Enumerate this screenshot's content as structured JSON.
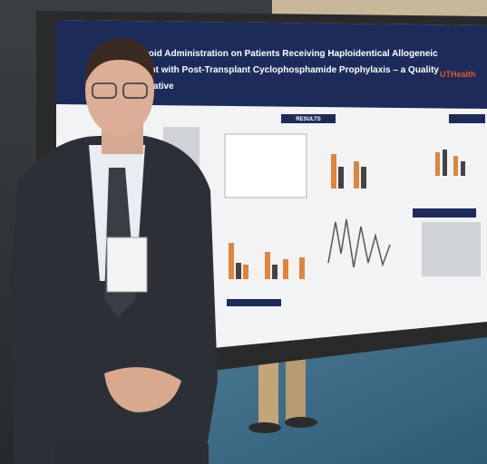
{
  "poster": {
    "title_lines": [
      "roid Administration on Patients Receiving Haploidentical Allogeneic",
      "ant with Post-Transplant Cyclophosphamide Prophylaxis – a Quality",
      "itiative"
    ],
    "logo": "UTHealth",
    "section_heading": "RESULTS"
  }
}
